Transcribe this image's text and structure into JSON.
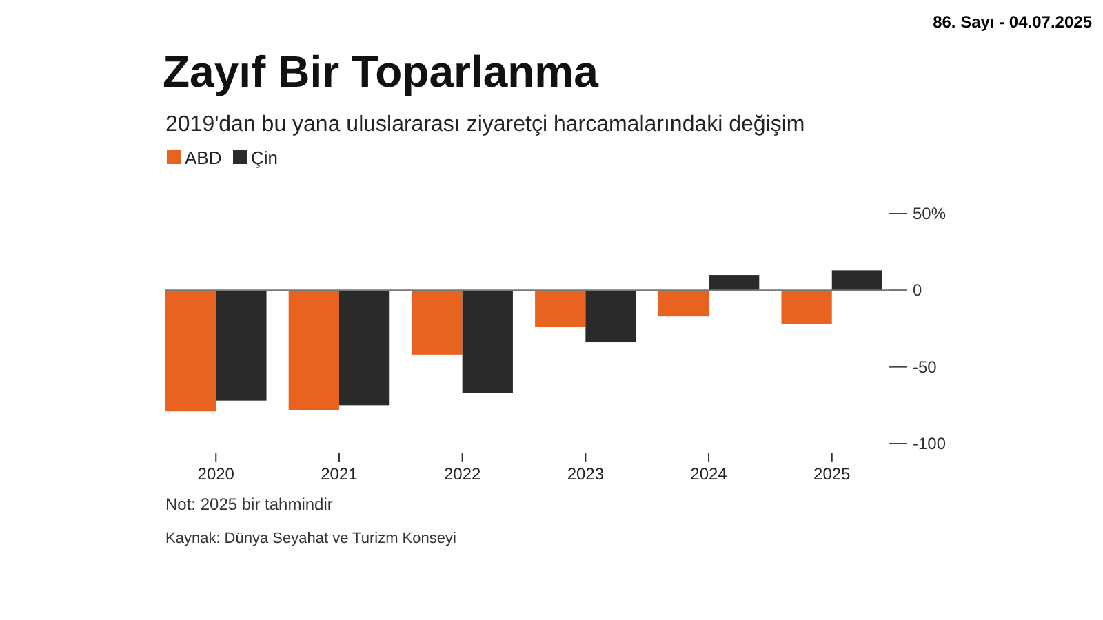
{
  "chart_data": {
    "type": "bar",
    "title": "Zayıf Bir Toparlanma",
    "subtitle": "2019'dan bu yana uluslararası ziyaretçi harcamalarındaki değişim",
    "categories": [
      "2020",
      "2021",
      "2022",
      "2023",
      "2024",
      "2025"
    ],
    "series": [
      {
        "name": "ABD",
        "color": "#e8631f",
        "values": [
          -79,
          -78,
          -42,
          -24,
          -17,
          -22
        ]
      },
      {
        "name": "Çin",
        "color": "#2a2a2a",
        "values": [
          -72,
          -75,
          -67,
          -34,
          10,
          13
        ]
      }
    ],
    "ylim": [
      -100,
      50
    ],
    "yticks": [
      {
        "value": 50,
        "label": "50%"
      },
      0,
      -50,
      -100
    ],
    "legend": "top left",
    "annotations": [
      "86. Sayı - 04.07.2025",
      "Not: 2025 bir tahmindir",
      "Kaynak: Dünya Seyahat ve Turizm Konseyi"
    ]
  }
}
